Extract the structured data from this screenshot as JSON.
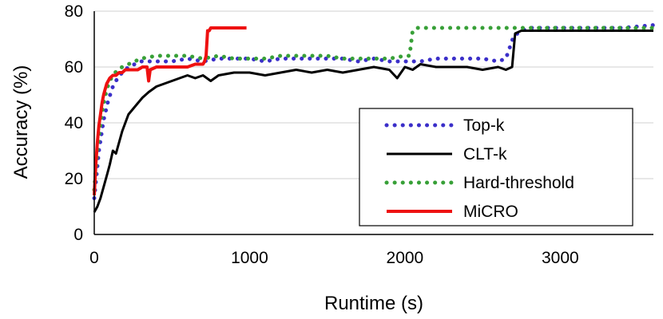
{
  "chart_data": {
    "type": "line",
    "xlabel": "Runtime (s)",
    "ylabel": "Accuracy (%)",
    "xlim": [
      0,
      3600
    ],
    "ylim": [
      0,
      80
    ],
    "xticks": [
      0,
      1000,
      2000,
      3000
    ],
    "yticks": [
      0,
      20,
      40,
      60,
      80
    ],
    "grid": "horizontal",
    "legend_position": "bottom-right",
    "series": [
      {
        "name": "Top-k",
        "color": "#3b2fc9",
        "style": "dotted",
        "x": [
          0,
          30,
          60,
          90,
          120,
          150,
          180,
          220,
          260,
          300,
          400,
          500,
          600,
          700,
          800,
          900,
          1000,
          1100,
          1200,
          1300,
          1400,
          1500,
          1600,
          1700,
          1800,
          1900,
          2000,
          2100,
          2200,
          2300,
          2400,
          2500,
          2600,
          2650,
          2700,
          2750,
          2800,
          3000,
          3200,
          3400,
          3600
        ],
        "y": [
          13,
          30,
          41,
          48,
          53,
          56,
          58,
          60,
          61,
          62,
          62,
          62,
          63,
          62,
          63,
          63,
          63,
          62,
          63,
          63,
          63,
          63,
          63,
          62,
          63,
          62,
          62,
          62,
          63,
          63,
          63,
          63,
          62,
          63,
          71,
          73,
          74,
          74,
          74,
          74,
          75
        ]
      },
      {
        "name": "CLT-k",
        "color": "#000000",
        "style": "solid",
        "x": [
          0,
          20,
          40,
          60,
          80,
          100,
          120,
          140,
          160,
          180,
          200,
          220,
          250,
          280,
          310,
          350,
          400,
          450,
          500,
          550,
          600,
          650,
          700,
          750,
          800,
          900,
          1000,
          1100,
          1200,
          1300,
          1400,
          1500,
          1600,
          1700,
          1800,
          1900,
          1950,
          2000,
          2050,
          2100,
          2200,
          2300,
          2400,
          2500,
          2600,
          2650,
          2690,
          2710,
          2750,
          2800,
          3000,
          3200,
          3400,
          3600
        ],
        "y": [
          8,
          10,
          13,
          17,
          21,
          25,
          30,
          29,
          33,
          37,
          40,
          43,
          45,
          47,
          49,
          51,
          53,
          54,
          55,
          56,
          57,
          56,
          57,
          55,
          57,
          58,
          58,
          57,
          58,
          59,
          58,
          59,
          58,
          59,
          60,
          59,
          56,
          60,
          59,
          61,
          60,
          60,
          60,
          59,
          60,
          59,
          60,
          72,
          73,
          73,
          73,
          73,
          73,
          73
        ]
      },
      {
        "name": "Hard-threshold",
        "color": "#38a038",
        "style": "dotted",
        "x": [
          0,
          20,
          40,
          60,
          80,
          100,
          120,
          150,
          180,
          220,
          260,
          300,
          400,
          500,
          600,
          700,
          800,
          900,
          1000,
          1100,
          1200,
          1300,
          1400,
          1500,
          1600,
          1700,
          1800,
          1900,
          2000,
          2030,
          2050,
          2080,
          2100,
          2300,
          2500,
          2700,
          3000,
          3300,
          3600
        ],
        "y": [
          16,
          30,
          40,
          47,
          52,
          55,
          57,
          59,
          60,
          61,
          62,
          63,
          64,
          64,
          64,
          63,
          64,
          63,
          63,
          63,
          64,
          64,
          64,
          64,
          63,
          63,
          63,
          63,
          64,
          64,
          73,
          74,
          74,
          74,
          74,
          74,
          74,
          74,
          74
        ]
      },
      {
        "name": "MiCRO",
        "color": "#ee1111",
        "style": "solid",
        "x": [
          0,
          10,
          20,
          30,
          40,
          50,
          60,
          70,
          80,
          90,
          100,
          120,
          140,
          160,
          180,
          200,
          220,
          250,
          280,
          310,
          340,
          350,
          360,
          400,
          450,
          500,
          550,
          600,
          650,
          700,
          710,
          720,
          730,
          740,
          750,
          800,
          850,
          900,
          950,
          980
        ],
        "y": [
          14,
          25,
          33,
          39,
          43,
          47,
          50,
          52,
          54,
          55,
          56,
          57,
          57,
          58,
          58,
          59,
          59,
          59,
          59,
          60,
          60,
          55,
          59,
          60,
          60,
          60,
          60,
          60,
          61,
          61,
          62,
          64,
          73,
          73,
          74,
          74,
          74,
          74,
          74,
          74
        ]
      }
    ]
  }
}
